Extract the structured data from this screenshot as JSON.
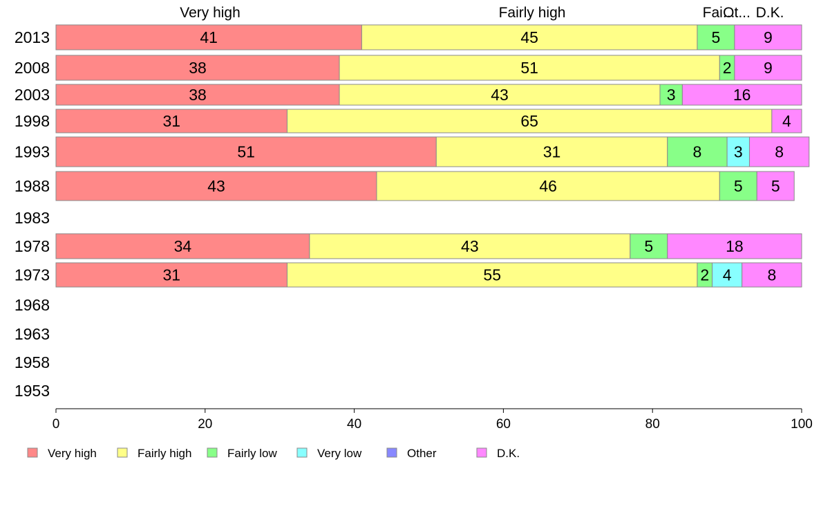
{
  "chart_data": {
    "type": "bar",
    "orientation": "horizontal",
    "stacked": true,
    "categories": [
      "2013",
      "2008",
      "2003",
      "1998",
      "1993",
      "1988",
      "1983",
      "1978",
      "1973",
      "1968",
      "1963",
      "1958",
      "1953"
    ],
    "series": [
      {
        "name": "Very high",
        "color": "#ff8888",
        "values": [
          41,
          38,
          38,
          31,
          51,
          43,
          null,
          34,
          31,
          null,
          null,
          null,
          null
        ]
      },
      {
        "name": "Fairly high",
        "color": "#ffff88",
        "values": [
          45,
          51,
          43,
          65,
          31,
          46,
          null,
          43,
          55,
          null,
          null,
          null,
          null
        ]
      },
      {
        "name": "Fairly low",
        "color": "#88ff88",
        "values": [
          5,
          2,
          3,
          null,
          8,
          5,
          null,
          5,
          2,
          null,
          null,
          null,
          null
        ]
      },
      {
        "name": "Very low",
        "color": "#88ffff",
        "values": [
          null,
          null,
          null,
          null,
          3,
          null,
          null,
          null,
          4,
          null,
          null,
          null,
          null
        ]
      },
      {
        "name": "Other",
        "color": "#8888ff",
        "values": [
          null,
          null,
          null,
          null,
          null,
          null,
          null,
          null,
          null,
          null,
          null,
          null,
          null
        ]
      },
      {
        "name": "D.K.",
        "color": "#ff88ff",
        "values": [
          9,
          9,
          16,
          4,
          8,
          5,
          null,
          18,
          8,
          null,
          null,
          null,
          null
        ]
      }
    ],
    "top_labels": [
      "Very high",
      "Fairly high",
      "Fai...",
      "Ot...",
      "D.K."
    ],
    "xlim": [
      0,
      100
    ],
    "xticks": [
      "0",
      "20",
      "40",
      "60",
      "80",
      "100"
    ],
    "grid": false,
    "legend_position": "bottom",
    "title": "",
    "xlabel": "",
    "ylabel": ""
  }
}
